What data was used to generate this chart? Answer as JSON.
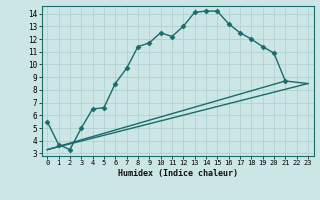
{
  "xlabel": "Humidex (Indice chaleur)",
  "xlim": [
    -0.5,
    23.5
  ],
  "ylim": [
    2.8,
    14.6
  ],
  "yticks": [
    3,
    4,
    5,
    6,
    7,
    8,
    9,
    10,
    11,
    12,
    13,
    14
  ],
  "xticks": [
    0,
    1,
    2,
    3,
    4,
    5,
    6,
    7,
    8,
    9,
    10,
    11,
    12,
    13,
    14,
    15,
    16,
    17,
    18,
    19,
    20,
    21,
    22,
    23
  ],
  "bg_color": "#cce5e5",
  "grid_color": "#aacfcf",
  "line_color": "#1a6b6b",
  "curve1_x": [
    0,
    1,
    2,
    3,
    4,
    5,
    6,
    7,
    8,
    9,
    10,
    11,
    12,
    13,
    14,
    15,
    16,
    17,
    18,
    19,
    20,
    21
  ],
  "curve1_y": [
    5.5,
    3.7,
    3.3,
    5.0,
    6.5,
    6.6,
    8.5,
    9.7,
    11.4,
    11.7,
    12.5,
    12.2,
    13.0,
    14.1,
    14.2,
    14.2,
    13.2,
    12.5,
    12.0,
    11.4,
    10.9,
    8.7
  ],
  "curve2_x": [
    0,
    23
  ],
  "curve2_y": [
    3.3,
    8.5
  ],
  "curve3_x": [
    0,
    21,
    23
  ],
  "curve3_y": [
    3.3,
    8.7,
    8.5
  ],
  "marker": "D",
  "marker_size": 2.5,
  "linewidth": 1.0
}
